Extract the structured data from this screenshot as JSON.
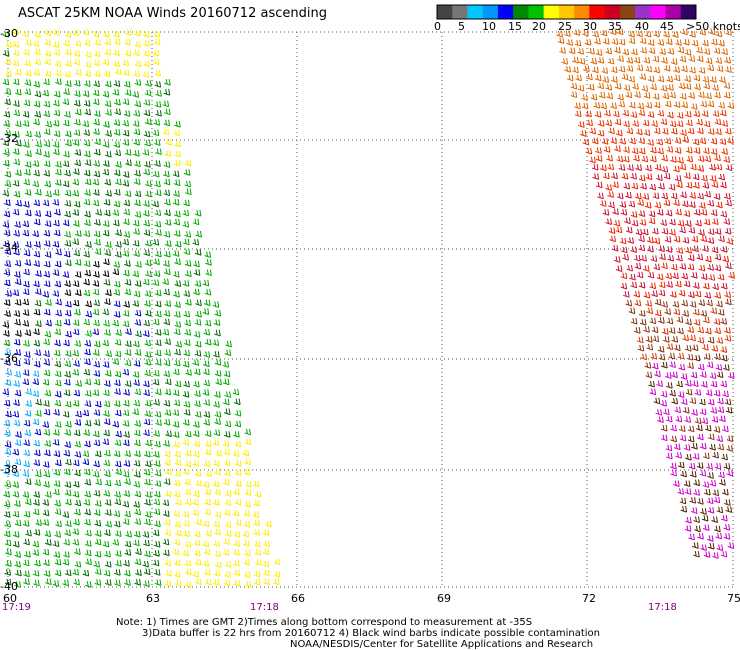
{
  "title": "ASCAT 25KM NOAA Winds 20160712 ascending",
  "legend": {
    "colors": [
      "#444444",
      "#777777",
      "#00c8ff",
      "#0099ff",
      "#0000ff",
      "#008800",
      "#00c000",
      "#ffff00",
      "#ffc800",
      "#ff8c00",
      "#ff0000",
      "#cc0022",
      "#8b4513",
      "#9933cc",
      "#ff00ff",
      "#aa00aa",
      "#330066"
    ],
    "labels": [
      "0",
      "5",
      "10",
      "15",
      "20",
      "25",
      "30",
      "35",
      "40",
      "45",
      ">50 knots"
    ]
  },
  "axes": {
    "lat_labels": [
      "-30",
      "-32",
      "-34",
      "-36",
      "-38",
      "-40"
    ],
    "lon_labels": [
      "60",
      "63",
      "66",
      "69",
      "72",
      "75"
    ]
  },
  "times": {
    "left": "17:19",
    "mid": "17:18",
    "right": "17:18"
  },
  "notes": {
    "line1": "Note: 1) Times are GMT 2)Times along bottom correspond to measurement at -35S",
    "line2": "3)Data buffer is 22 hrs from 20160712 4) Black wind barbs indicate possible contamination",
    "line3": "NOAA/NESDIS/Center for Satellite Applications and Research"
  }
}
